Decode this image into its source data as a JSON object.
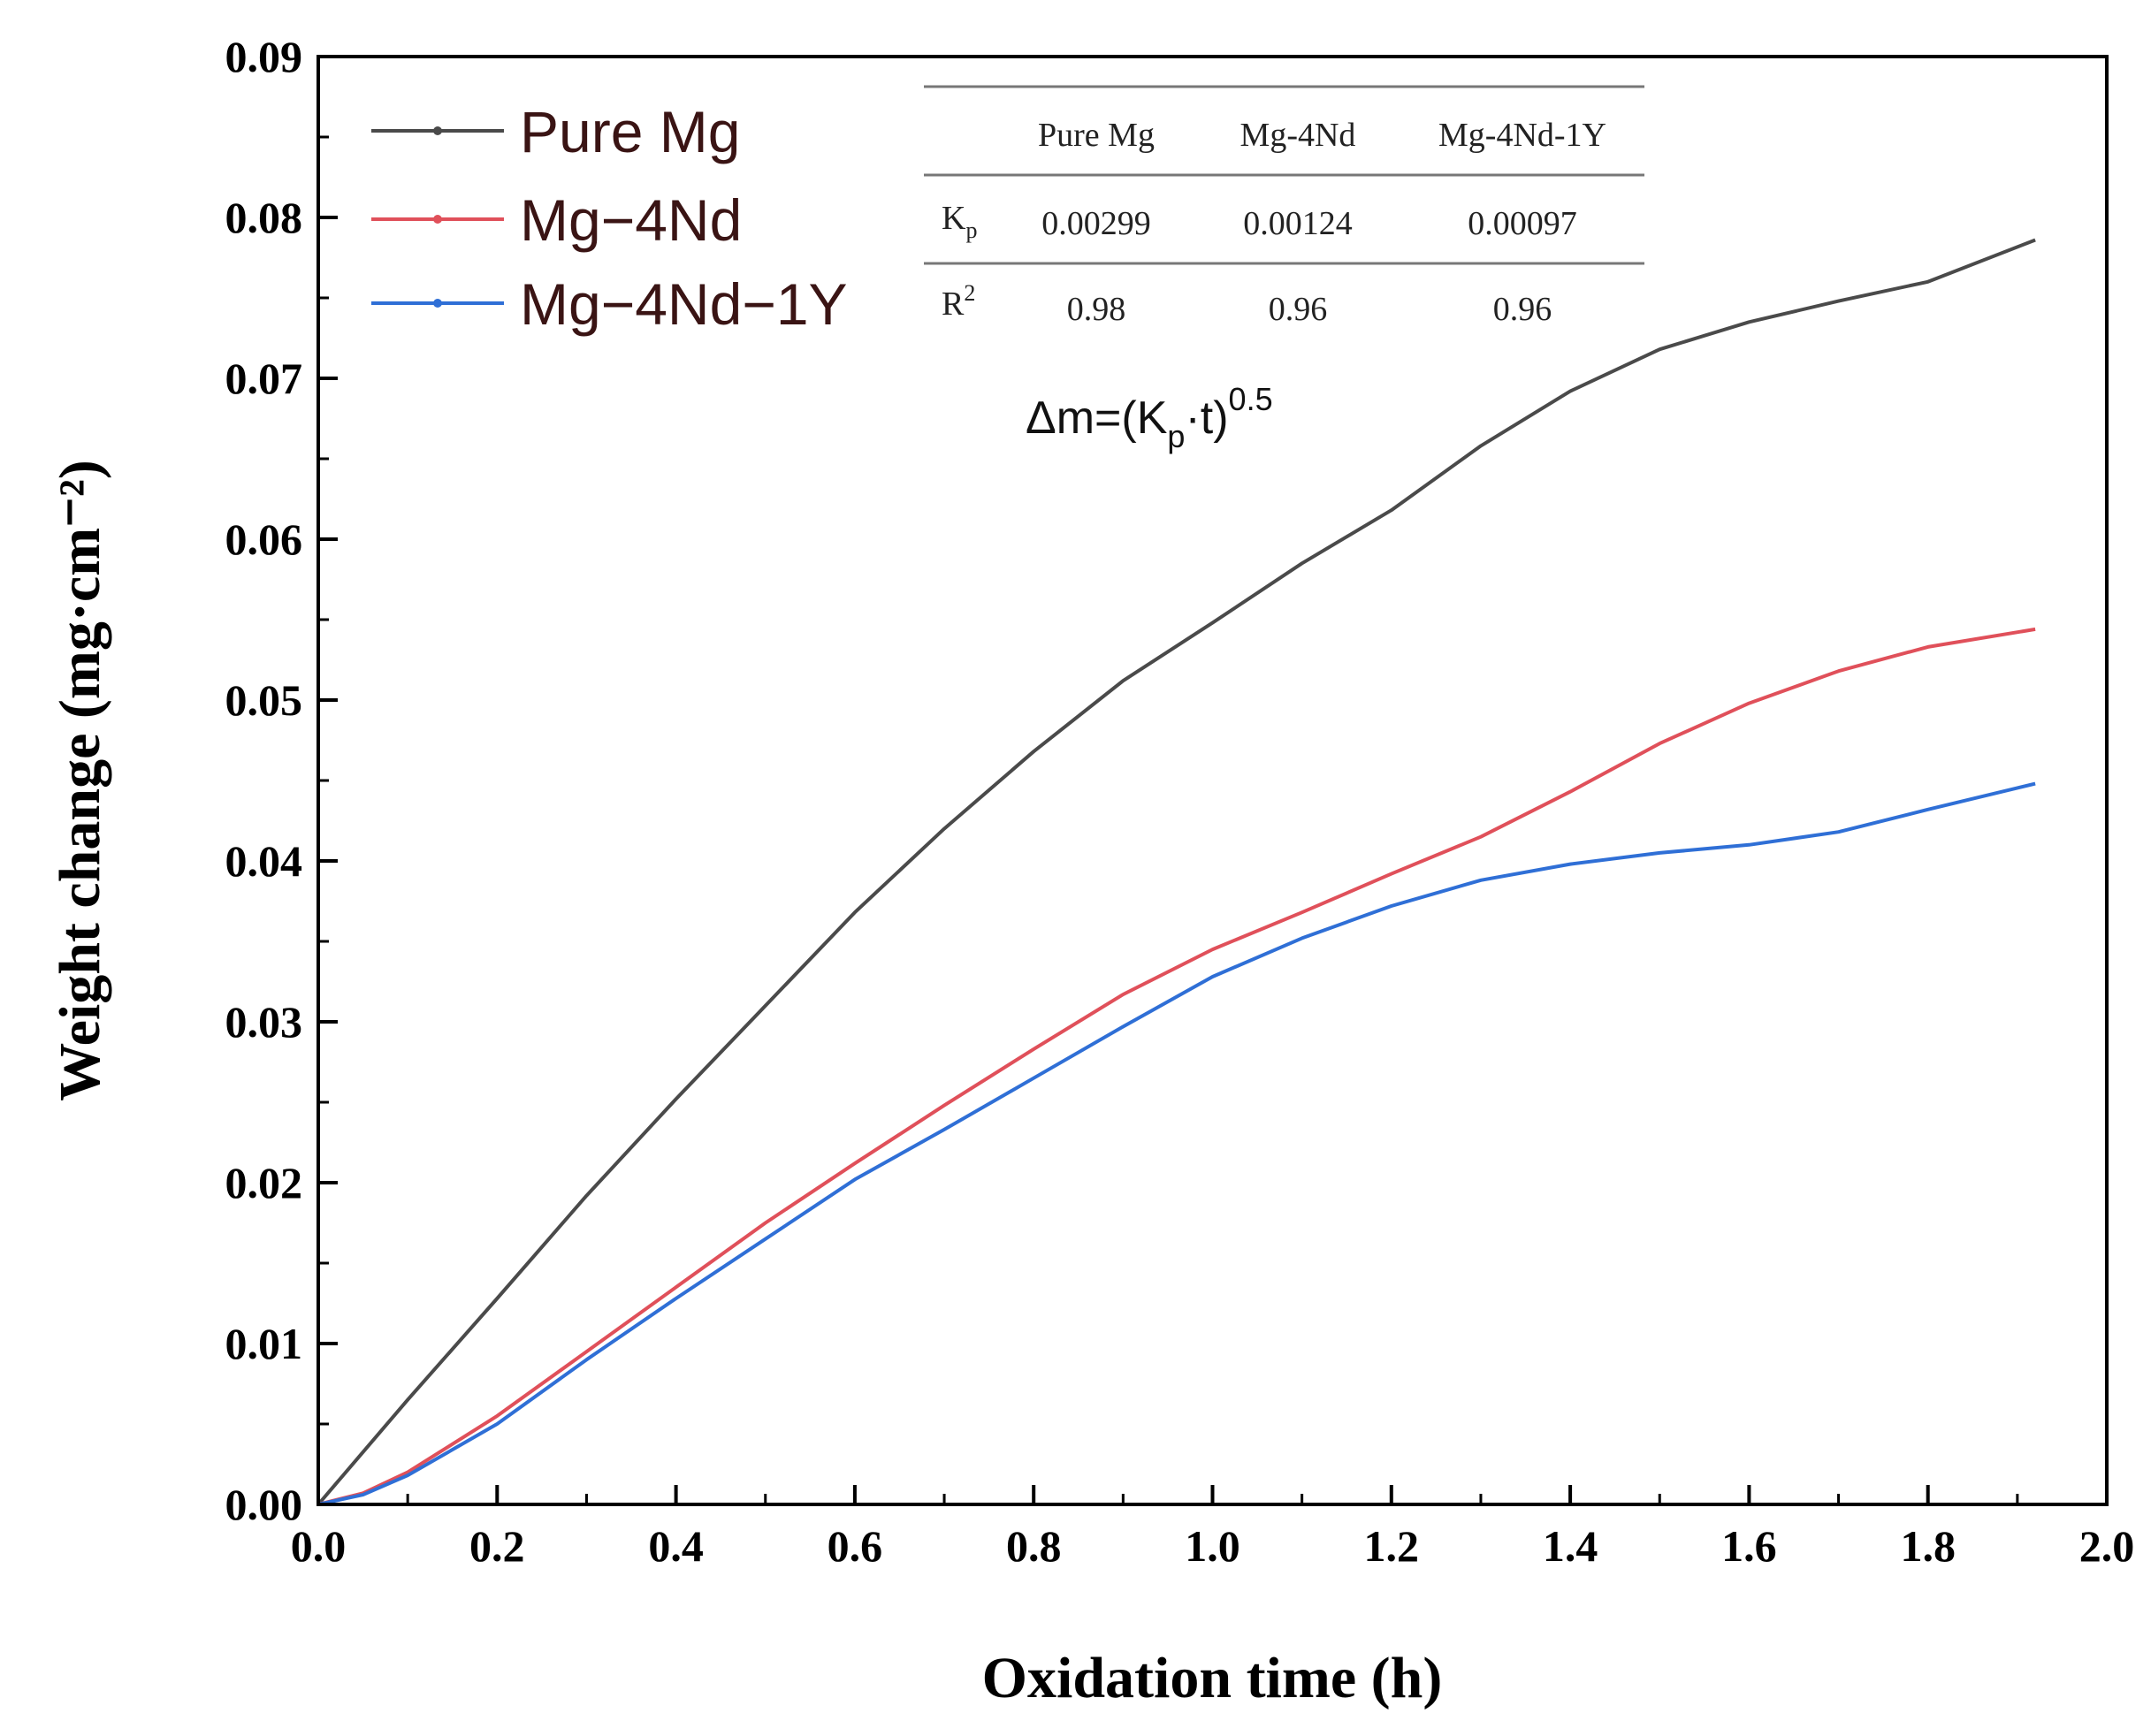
{
  "chart_data": {
    "type": "line",
    "title": "",
    "xlabel": "Oxidation time (h)",
    "ylabel": "Weight change (mg·cm⁻²)",
    "xlim": [
      0.0,
      2.0
    ],
    "ylim": [
      0.0,
      0.09
    ],
    "x_ticks": [
      "0.0",
      "0.2",
      "0.4",
      "0.6",
      "0.8",
      "1.0",
      "1.2",
      "1.4",
      "1.6",
      "1.8",
      "2.0"
    ],
    "y_ticks": [
      "0.00",
      "0.01",
      "0.02",
      "0.03",
      "0.04",
      "0.05",
      "0.06",
      "0.07",
      "0.08",
      "0.09"
    ],
    "legend_position": "top-left",
    "series": [
      {
        "name": "Pure Mg",
        "color": "#4a4a4a",
        "x": [
          0.0,
          0.1,
          0.2,
          0.3,
          0.4,
          0.5,
          0.6,
          0.7,
          0.8,
          0.9,
          1.0,
          1.1,
          1.2,
          1.3,
          1.4,
          1.5,
          1.6,
          1.7,
          1.8,
          1.92
        ],
        "y": [
          0.0,
          0.0065,
          0.0128,
          0.0192,
          0.0252,
          0.031,
          0.0368,
          0.042,
          0.0468,
          0.0512,
          0.0548,
          0.0585,
          0.0618,
          0.0658,
          0.0692,
          0.0718,
          0.0735,
          0.0748,
          0.076,
          0.0786
        ]
      },
      {
        "name": "Mg−4Nd",
        "color": "#e0505a",
        "x": [
          0.0,
          0.05,
          0.1,
          0.2,
          0.3,
          0.4,
          0.5,
          0.6,
          0.7,
          0.8,
          0.9,
          1.0,
          1.1,
          1.2,
          1.3,
          1.4,
          1.5,
          1.6,
          1.7,
          1.8,
          1.92
        ],
        "y": [
          0.0,
          0.0007,
          0.002,
          0.0055,
          0.0095,
          0.0135,
          0.0175,
          0.0212,
          0.0248,
          0.0283,
          0.0317,
          0.0345,
          0.0368,
          0.0392,
          0.0415,
          0.0443,
          0.0473,
          0.0498,
          0.0518,
          0.0533,
          0.0544
        ]
      },
      {
        "name": "Mg−4Nd−1Y",
        "color": "#2f6fd6",
        "x": [
          0.0,
          0.05,
          0.1,
          0.2,
          0.3,
          0.4,
          0.5,
          0.6,
          0.7,
          0.8,
          0.9,
          1.0,
          1.1,
          1.2,
          1.3,
          1.4,
          1.5,
          1.6,
          1.7,
          1.8,
          1.92
        ],
        "y": [
          0.0,
          0.0006,
          0.0018,
          0.005,
          0.009,
          0.0128,
          0.0165,
          0.0202,
          0.0233,
          0.0265,
          0.0297,
          0.0328,
          0.0352,
          0.0372,
          0.0388,
          0.0398,
          0.0405,
          0.041,
          0.0418,
          0.0432,
          0.0448
        ]
      }
    ],
    "inset_table": {
      "headers": [
        "Pure Mg",
        "Mg-4Nd",
        "Mg-4Nd-1Y"
      ],
      "rows": [
        {
          "label_main": "K",
          "label_sub": "p",
          "label_sup": "",
          "values": [
            "0.00299",
            "0.00124",
            "0.00097"
          ]
        },
        {
          "label_main": "R",
          "label_sub": "",
          "label_sup": "2",
          "values": [
            "0.98",
            "0.96",
            "0.96"
          ]
        }
      ]
    },
    "formula": {
      "prefix": "Δm=(K",
      "sub": "p",
      "middle": "·t)",
      "sup": "0.5"
    }
  }
}
